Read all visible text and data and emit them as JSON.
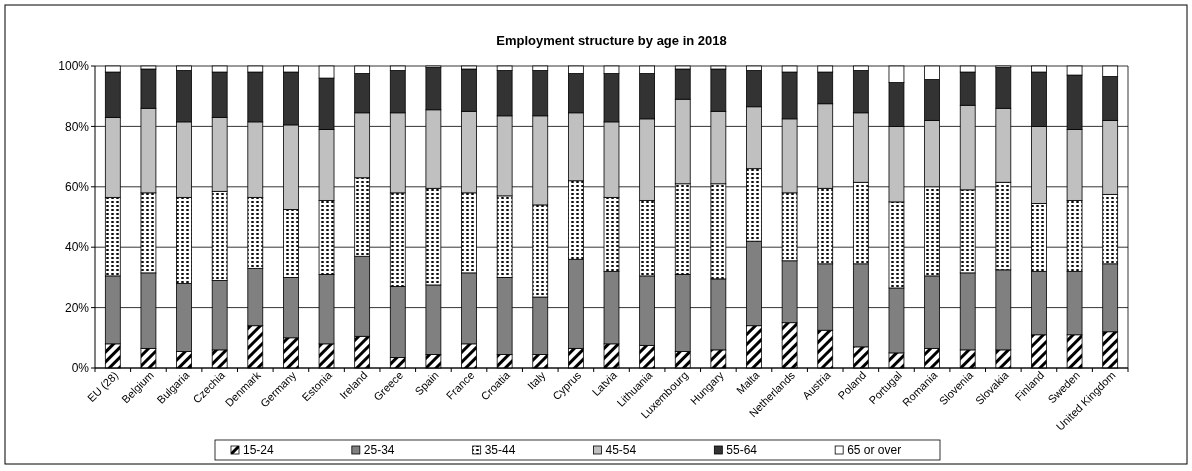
{
  "chart_data": {
    "type": "bar",
    "title": "Employment structure by age in 2018",
    "stacked": true,
    "categories": [
      "EU (28)",
      "Belgium",
      "Bulgaria",
      "Czechia",
      "Denmark",
      "Germany",
      "Estonia",
      "Ireland",
      "Greece",
      "Spain",
      "France",
      "Croatia",
      "Italy",
      "Cyprus",
      "Latvia",
      "Lithuania",
      "Luxembourg",
      "Hungary",
      "Malta",
      "Netherlands",
      "Austria",
      "Poland",
      "Portugal",
      "Romania",
      "Slovenia",
      "Slovakia",
      "Finland",
      "Sweden",
      "United Kingdom"
    ],
    "series": [
      {
        "name": "15-24",
        "color": "#000000",
        "values": [
          8,
          6.5,
          5.5,
          6,
          14,
          10,
          8,
          10.5,
          3.5,
          4.5,
          8,
          4.5,
          4.5,
          6.5,
          8,
          7.5,
          5.5,
          6,
          14,
          15,
          12.5,
          7,
          5,
          6.5,
          6,
          6,
          11,
          11,
          12
        ]
      },
      {
        "name": "25-34",
        "color": "#808080",
        "values": [
          22.5,
          25,
          22.5,
          23,
          19,
          20,
          23,
          26.5,
          23.5,
          23,
          23.5,
          25.5,
          19,
          29.5,
          24,
          23,
          25.5,
          23.5,
          28,
          20.5,
          22,
          27.5,
          21.5,
          24,
          25.5,
          26.5,
          21,
          21,
          22.5
        ]
      },
      {
        "name": "35-44",
        "color": "#000000",
        "values": [
          26,
          26.5,
          28.5,
          29.5,
          23.5,
          22.5,
          24.5,
          26,
          31,
          32,
          26.5,
          27,
          30.5,
          26,
          24.5,
          25,
          30,
          31.5,
          24,
          22.5,
          25,
          27,
          28.5,
          29.5,
          27.5,
          29,
          22.5,
          23.5,
          23
        ]
      },
      {
        "name": "45-54",
        "color": "#c0c0c0",
        "values": [
          26.5,
          28,
          25,
          24.5,
          25,
          28,
          23.5,
          21.5,
          26.5,
          26,
          27,
          26.5,
          29.5,
          22.5,
          25,
          27,
          28,
          24,
          20.5,
          24.5,
          28,
          23,
          25,
          22,
          28,
          24.5,
          25.5,
          23.5,
          24.5
        ]
      },
      {
        "name": "55-64",
        "color": "#333333",
        "values": [
          15,
          13,
          17,
          15,
          16.5,
          17.5,
          17,
          13,
          14,
          14,
          14,
          15,
          15,
          13,
          16,
          15,
          10,
          14,
          12,
          15.5,
          10.5,
          14,
          14.5,
          13.5,
          11,
          13.5,
          18,
          18,
          14.5
        ]
      },
      {
        "name": "65 or over",
        "color": "#ffffff",
        "values": [
          2,
          1,
          1.5,
          2,
          2,
          2,
          4,
          2.5,
          1.5,
          0.5,
          1,
          1.5,
          1.5,
          2.5,
          2.5,
          2.5,
          1,
          1,
          1.5,
          2,
          2,
          1.5,
          5.5,
          4.5,
          2,
          0.5,
          2,
          3,
          3.5
        ]
      }
    ],
    "ylim": [
      0,
      100
    ],
    "yticks": [
      {
        "value": 0,
        "label": "0%"
      },
      {
        "value": 20,
        "label": "20%"
      },
      {
        "value": 40,
        "label": "40%"
      },
      {
        "value": 60,
        "label": "60%"
      },
      {
        "value": 80,
        "label": "80%"
      },
      {
        "value": 100,
        "label": "100%"
      }
    ],
    "grid": "y",
    "legend": "bottom"
  }
}
